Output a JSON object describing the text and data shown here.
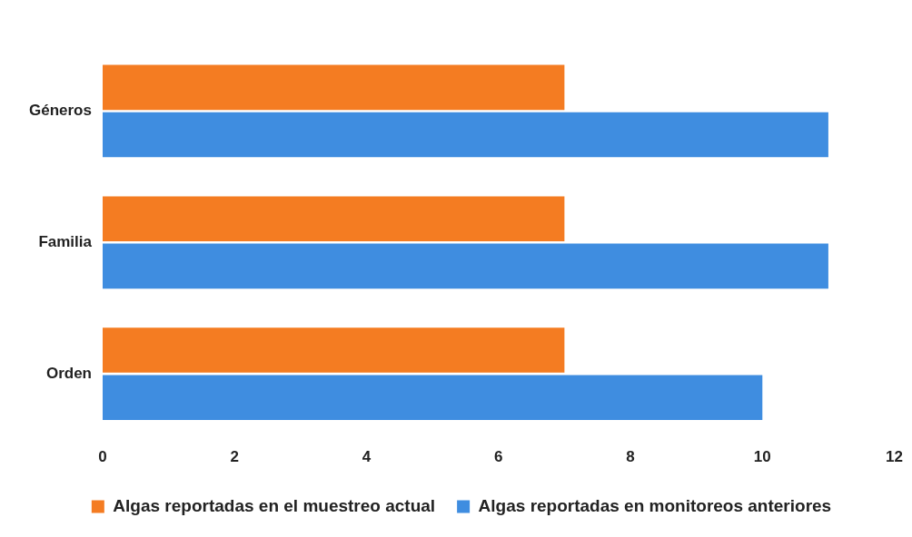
{
  "chart_data": {
    "type": "bar",
    "orientation": "horizontal",
    "categories": [
      "Géneros",
      "Familia",
      "Orden"
    ],
    "series": [
      {
        "name": "Algas reportadas en el muestreo actual",
        "color": "#f47c22",
        "values": [
          7,
          7,
          7
        ]
      },
      {
        "name": "Algas reportadas en monitoreos anteriores",
        "color": "#3f8de0",
        "values": [
          11,
          11,
          10
        ]
      }
    ],
    "xlim": [
      0,
      12
    ],
    "xticks": [
      0,
      2,
      4,
      6,
      8,
      10,
      12
    ],
    "legend": "bottom"
  }
}
